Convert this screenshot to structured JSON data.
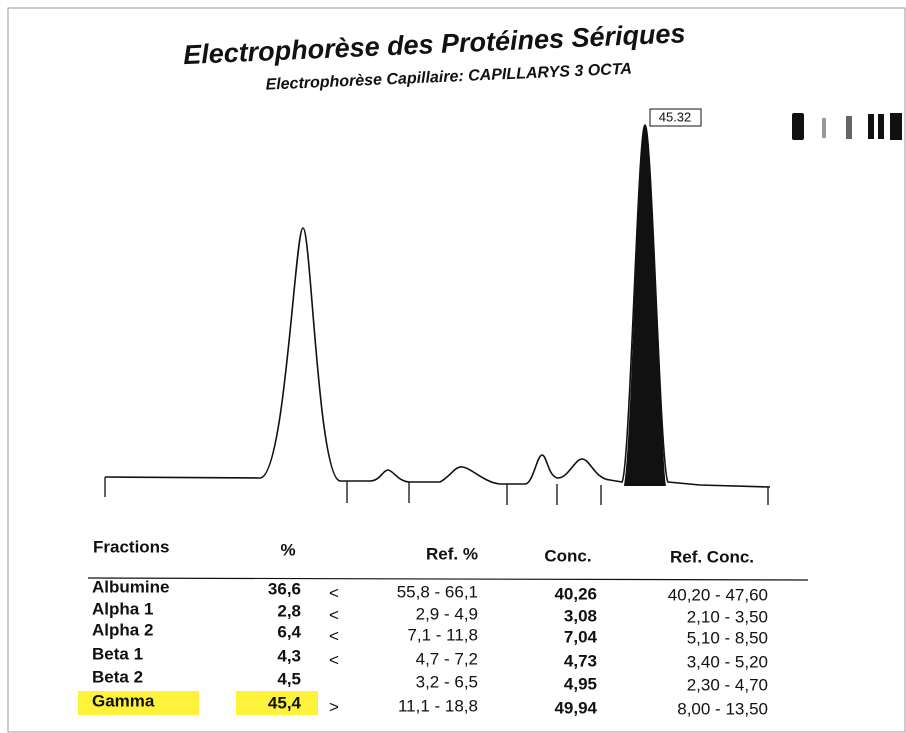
{
  "header": {
    "title": "Electrophorèse des Protéines Sériques",
    "subtitle": "Electrophorèse Capillaire: CAPILLARYS 3 OCTA"
  },
  "electrophoregram": {
    "peak_label": "45.32"
  },
  "table": {
    "columns": {
      "fraction": "Fractions",
      "percent": "%",
      "ref_percent": "Ref. %",
      "conc": "Conc.",
      "ref_conc": "Ref. Conc."
    },
    "rows": [
      {
        "fraction": "Albumine",
        "percent": "36,6",
        "flag": "<",
        "ref_percent": "55,8 - 66,1",
        "conc": "40,26",
        "ref_conc": "40,20 - 47,60"
      },
      {
        "fraction": "Alpha 1",
        "percent": "2,8",
        "flag": "<",
        "ref_percent": "2,9 - 4,9",
        "conc": "3,08",
        "ref_conc": "2,10 - 3,50"
      },
      {
        "fraction": "Alpha 2",
        "percent": "6,4",
        "flag": "<",
        "ref_percent": "7,1 - 11,8",
        "conc": "7,04",
        "ref_conc": "5,10 - 8,50"
      },
      {
        "fraction": "Beta 1",
        "percent": "4,3",
        "flag": "<",
        "ref_percent": "4,7 - 7,2",
        "conc": "4,73",
        "ref_conc": "3,40 - 5,20"
      },
      {
        "fraction": "Beta 2",
        "percent": "4,5",
        "ref_percent": "3,2 - 6,5",
        "conc": "4,95",
        "ref_conc": "2,30 - 4,70"
      },
      {
        "fraction": "Gamma",
        "percent": "45,4",
        "flag": ">",
        "ref_percent": "11,1 - 18,8",
        "conc": "49,94",
        "ref_conc": "8,00 - 13,50"
      }
    ]
  }
}
